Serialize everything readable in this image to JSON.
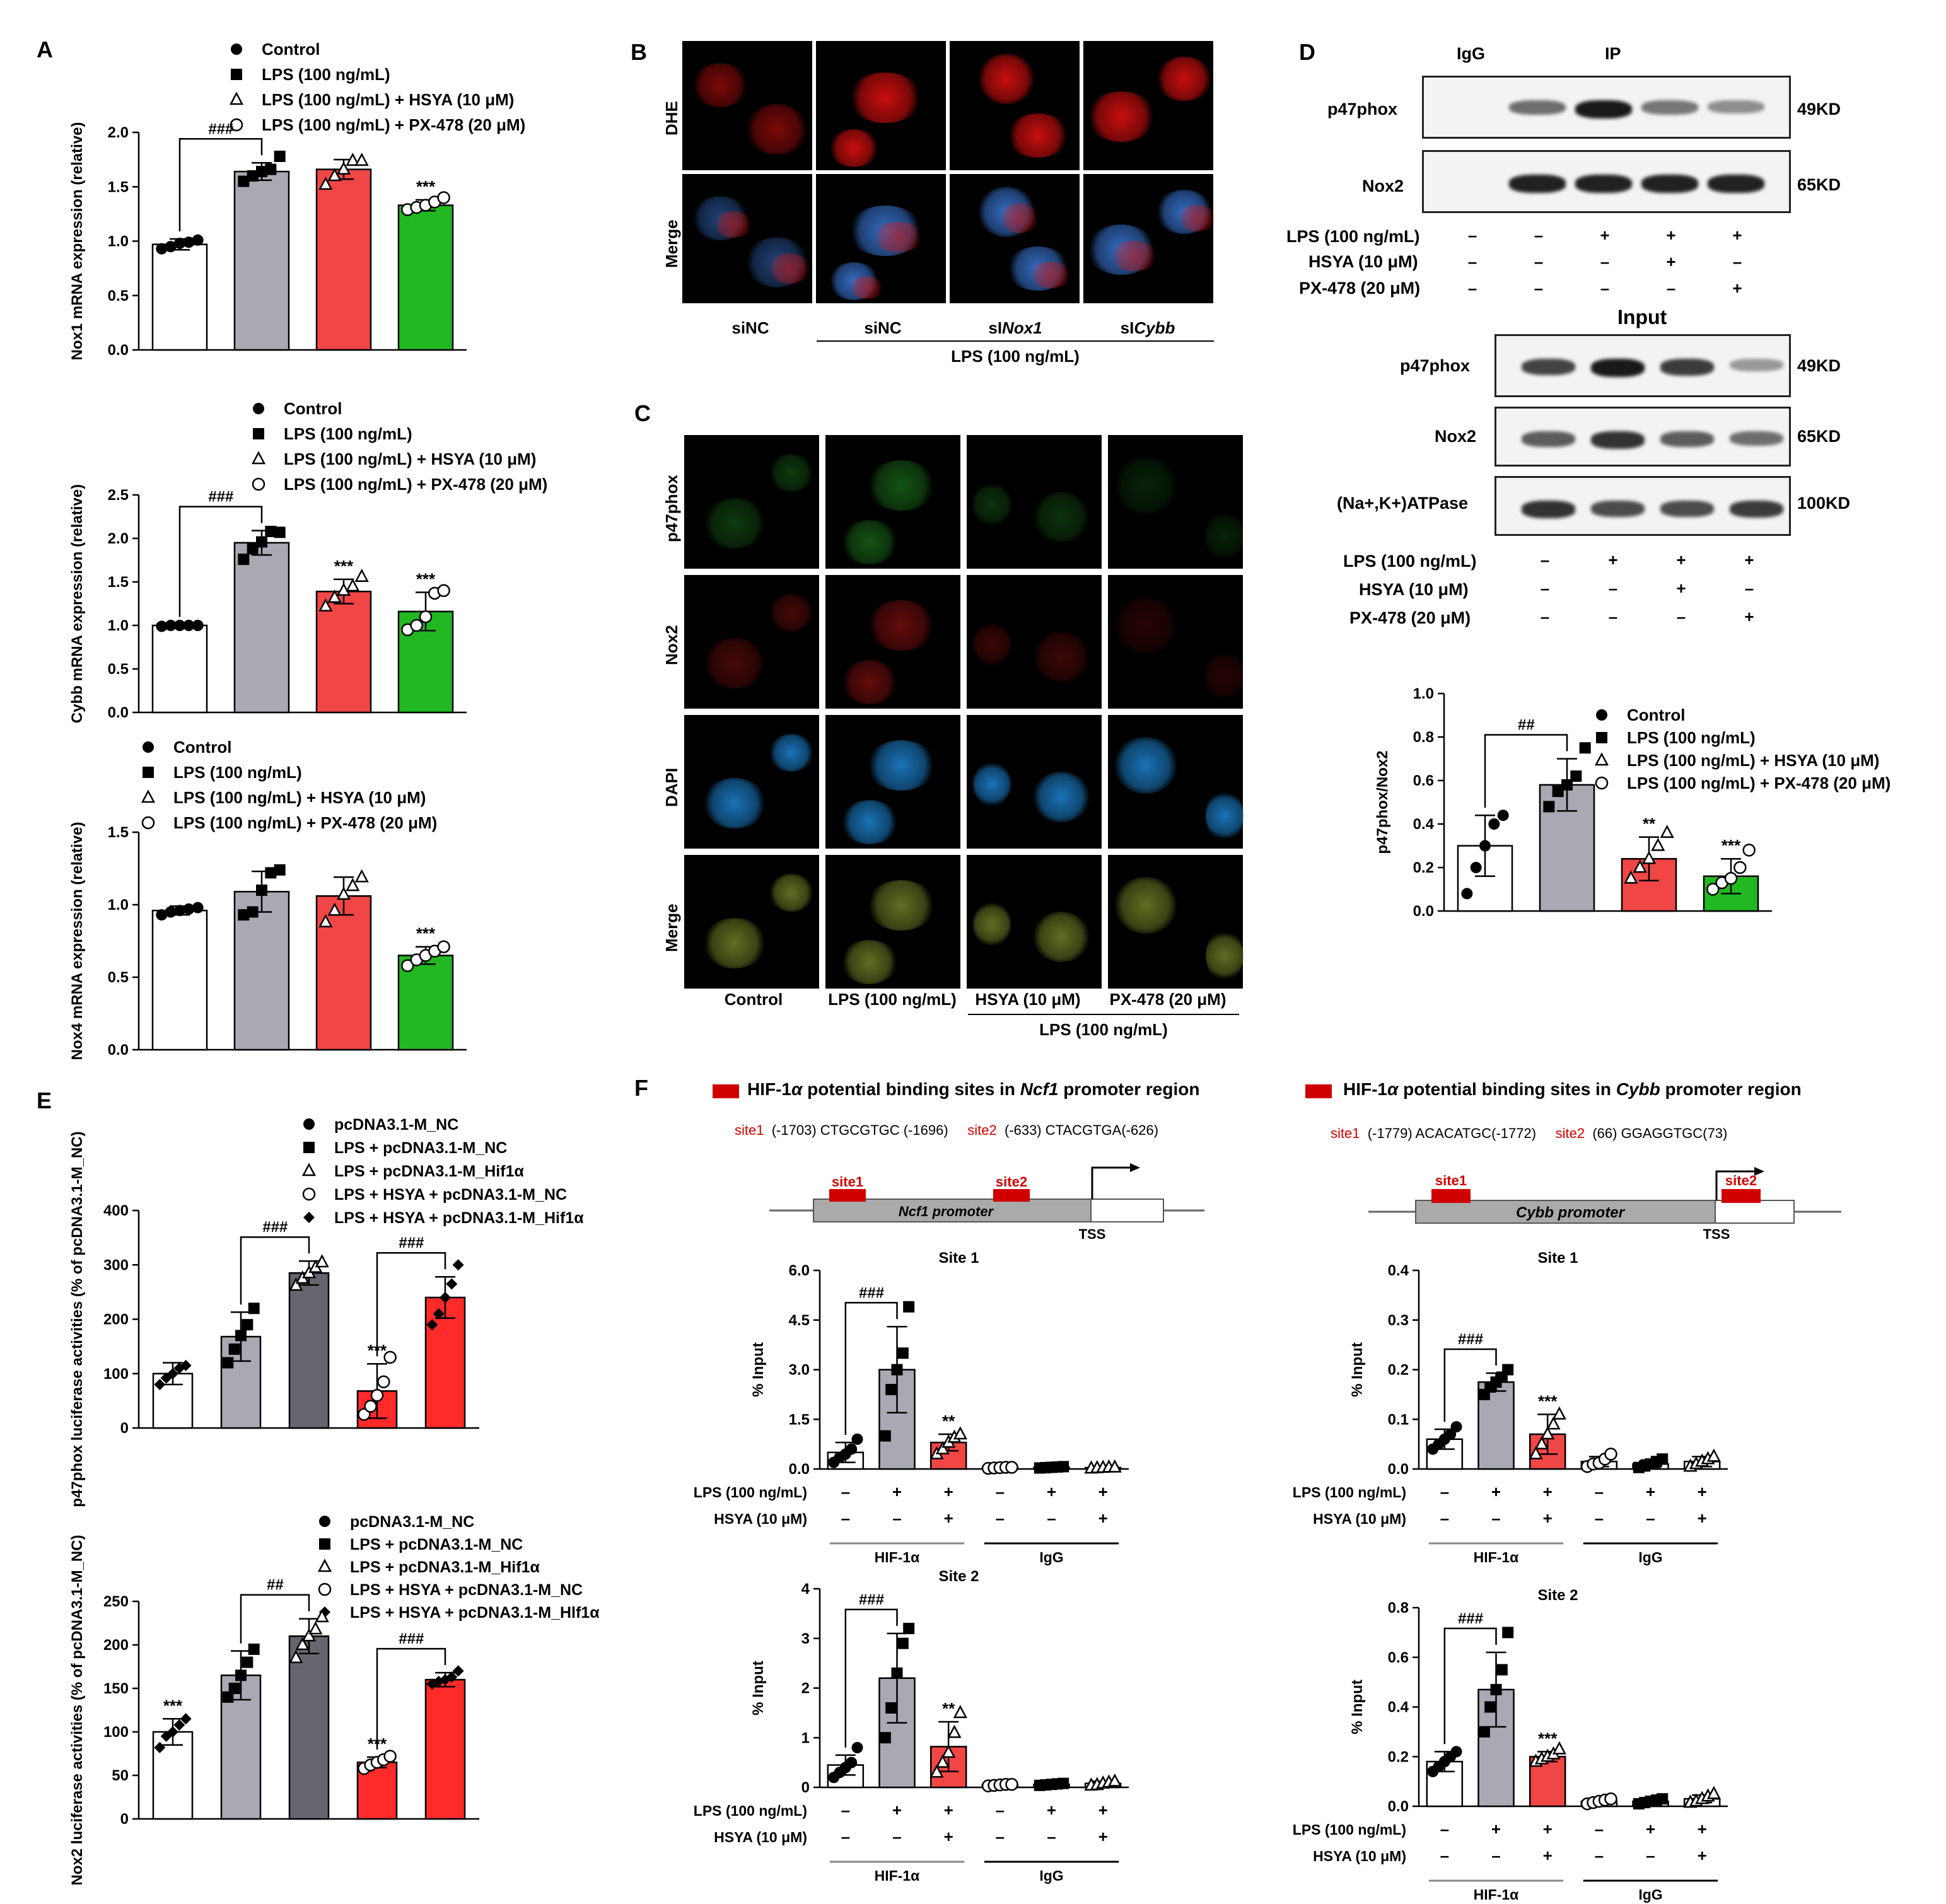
{
  "panels": {
    "A": "A",
    "B": "B",
    "C": "C",
    "D": "D",
    "E": "E",
    "F": "F"
  },
  "colors": {
    "control": "#ffffff",
    "lps": "#a9a9b3",
    "hsya": "#f04646",
    "px": "#22b822",
    "hif1a": "#666670",
    "red": "#ff2a2a",
    "nc2": "#ff2a2a",
    "blue_ring": "#3c5cc8"
  },
  "legends": {
    "treat": [
      "Control",
      "LPS (100 ng/mL)",
      "LPS (100 ng/mL) + HSYA (10 μM)",
      "LPS (100 ng/mL) + PX-478 (20 μM)"
    ],
    "luc_top": [
      "pcDNA3.1-M_NC",
      "LPS + pcDNA3.1-M_NC",
      "LPS + pcDNA3.1-M_Hif1α",
      "LPS + HSYA + pcDNA3.1-M_NC",
      "LPS + HSYA + pcDNA3.1-M_Hif1α"
    ],
    "luc_bottom": [
      "pcDNA3.1-M_NC",
      "LPS  + pcDNA3.1-M_NC",
      "LPS  + pcDNA3.1-M_Hif1α",
      "LPS + HSYA + pcDNA3.1-M_NC",
      "LPS + HSYA + pcDNA3.1-M_Hlf1α"
    ]
  },
  "panel_b": {
    "row_labels": [
      "DHE",
      "Merge"
    ],
    "col_labels": [
      "siNC",
      "siNC",
      "siNox1",
      "siCybb"
    ],
    "group_label": "LPS (100 ng/mL)"
  },
  "panel_c": {
    "row_labels": [
      "p47phox",
      "Nox2",
      "DAPI",
      "Merge"
    ],
    "col_labels": [
      "Control",
      "LPS (100 ng/mL)",
      "HSYA (10 μM)",
      "PX-478 (20 μM)"
    ],
    "group_label": "LPS (100 ng/mL)"
  },
  "panel_d": {
    "ip_headers": [
      "IgG",
      "IP"
    ],
    "ip_rows": [
      "p47phox",
      "Nox2"
    ],
    "ip_kd": [
      "49KD",
      "65KD"
    ],
    "treat_rows": [
      "LPS (100 ng/mL)",
      "HSYA (10 μM)",
      "PX-478 (20 μM)"
    ],
    "ip_signs": [
      [
        "–",
        "–",
        "+",
        "+",
        "+"
      ],
      [
        "–",
        "–",
        "–",
        "+",
        "–"
      ],
      [
        "–",
        "–",
        "–",
        "–",
        "+"
      ]
    ],
    "input_title": "Input",
    "input_rows": [
      "p47phox",
      "Nox2",
      "(Na+,K+)ATPase"
    ],
    "input_kd": [
      "49KD",
      "65KD",
      "100KD"
    ],
    "input_signs": [
      [
        "–",
        "+",
        "+",
        "+"
      ],
      [
        "–",
        "–",
        "+",
        "–"
      ],
      [
        "–",
        "–",
        "–",
        "+"
      ]
    ]
  },
  "panel_f": {
    "left_title_pre": "HIF-1",
    "left_title_mid": " potential binding sites in ",
    "left_gene": "Ncf1",
    "left_title_post": " promoter region",
    "right_gene": "Cybb",
    "alpha": "α",
    "left_site1": "site1",
    "left_site1_seq": "(-1703) CTGCGTGC (-1696)",
    "left_site2": "site2",
    "left_site2_seq": "(-633) CTACGTGA(-626)",
    "right_site1": "site1",
    "right_site1_seq": "(-1779) ACACATGC(-1772)",
    "right_site2": "site2",
    "right_site2_seq": "(66) GGAGGTGC(73)",
    "left_promoter": "Ncf1 promoter",
    "right_promoter": "Cybb promoter",
    "tss": "TSS"
  },
  "chart_data": [
    {
      "id": "A1",
      "type": "bar",
      "ylabel": "Nox1 mRNA expression (relative)",
      "ylim": [
        0,
        2.0
      ],
      "yticks": [
        0.0,
        0.5,
        1.0,
        1.5,
        2.0
      ],
      "categories": [
        "Control",
        "LPS",
        "LPS+HSYA",
        "LPS+PX-478"
      ],
      "values": [
        0.97,
        1.64,
        1.66,
        1.33
      ],
      "errors": [
        0.05,
        0.08,
        0.09,
        0.05
      ],
      "points": [
        [
          0.93,
          0.95,
          0.98,
          0.99,
          1.01
        ],
        [
          1.55,
          1.6,
          1.64,
          1.66,
          1.78
        ],
        [
          1.52,
          1.6,
          1.66,
          1.74,
          1.74
        ],
        [
          1.29,
          1.31,
          1.33,
          1.36,
          1.4
        ]
      ],
      "annotations": [
        "###",
        "",
        "",
        "***"
      ]
    },
    {
      "id": "A2",
      "type": "bar",
      "ylabel": "Cybb mRNA expression (relative)",
      "ylim": [
        0,
        2.5
      ],
      "yticks": [
        0.0,
        0.5,
        1.0,
        1.5,
        2.0,
        2.5
      ],
      "categories": [
        "Control",
        "LPS",
        "LPS+HSYA",
        "LPS+PX-478"
      ],
      "values": [
        1.0,
        1.95,
        1.39,
        1.16
      ],
      "errors": [
        0.01,
        0.14,
        0.14,
        0.22
      ],
      "points": [
        [
          0.99,
          1.0,
          1.0,
          1.0,
          1.0
        ],
        [
          1.76,
          1.88,
          1.96,
          2.08,
          2.07
        ],
        [
          1.22,
          1.32,
          1.4,
          1.45,
          1.56
        ],
        [
          0.95,
          1.0,
          1.1,
          1.37,
          1.4
        ]
      ],
      "annotations": [
        "###",
        "",
        "***",
        "***"
      ]
    },
    {
      "id": "A3",
      "type": "bar",
      "ylabel": "Nox4 mRNA expression (relative)",
      "ylim": [
        0,
        1.5
      ],
      "yticks": [
        0.0,
        0.5,
        1.0,
        1.5
      ],
      "categories": [
        "Control",
        "LPS",
        "LPS+HSYA",
        "LPS+PX-478"
      ],
      "values": [
        0.96,
        1.09,
        1.06,
        0.65
      ],
      "errors": [
        0.03,
        0.14,
        0.13,
        0.06
      ],
      "points": [
        [
          0.93,
          0.95,
          0.96,
          0.97,
          0.98
        ],
        [
          0.93,
          0.95,
          1.1,
          1.22,
          1.24
        ],
        [
          0.88,
          0.96,
          1.07,
          1.13,
          1.19
        ],
        [
          0.58,
          0.62,
          0.65,
          0.68,
          0.71
        ]
      ],
      "annotations": [
        "",
        "",
        "",
        "***"
      ]
    },
    {
      "id": "D",
      "type": "bar",
      "ylabel": "p47phox/Nox2",
      "ylim": [
        0,
        1.0
      ],
      "yticks": [
        0.0,
        0.2,
        0.4,
        0.6,
        0.8,
        1.0
      ],
      "categories": [
        "Control",
        "LPS",
        "LPS+HSYA",
        "LPS+PX-478"
      ],
      "values": [
        0.3,
        0.58,
        0.24,
        0.16
      ],
      "errors": [
        0.14,
        0.12,
        0.1,
        0.08
      ],
      "points": [
        [
          0.08,
          0.2,
          0.3,
          0.4,
          0.44
        ],
        [
          0.48,
          0.55,
          0.58,
          0.62,
          0.75
        ],
        [
          0.15,
          0.2,
          0.24,
          0.3,
          0.36
        ],
        [
          0.1,
          0.13,
          0.15,
          0.2,
          0.28
        ]
      ],
      "annotations": [
        "##",
        "",
        "**",
        "***"
      ]
    },
    {
      "id": "E1",
      "type": "bar",
      "ylabel": "p47phox luciferase activities (% of pcDNA3.1-M_NC)",
      "ylim": [
        0,
        400
      ],
      "yticks": [
        0,
        100,
        200,
        300,
        400
      ],
      "categories": [
        "pcDNA3.1-M_NC",
        "LPS+NC",
        "LPS+Hif1α",
        "LPS+HSYA+NC",
        "LPS+HSYA+Hif1α"
      ],
      "values": [
        100,
        168,
        285,
        68,
        240
      ],
      "errors": [
        20,
        45,
        22,
        50,
        38
      ],
      "points": [
        [
          80,
          92,
          100,
          110,
          115
        ],
        [
          120,
          145,
          170,
          190,
          220
        ],
        [
          262,
          275,
          285,
          295,
          305
        ],
        [
          25,
          40,
          60,
          85,
          130
        ],
        [
          190,
          210,
          240,
          265,
          300
        ]
      ],
      "annotations": [
        "",
        "",
        "###",
        "***",
        "###"
      ]
    },
    {
      "id": "E2",
      "type": "bar",
      "ylabel": "Nox2 luciferase activities (% of pcDNA3.1-M_NC)",
      "ylim": [
        0,
        250
      ],
      "yticks": [
        0,
        50,
        100,
        150,
        200,
        250
      ],
      "categories": [
        "pcDNA3.1-M_NC",
        "LPS+NC",
        "LPS+Hif1α",
        "LPS+HSYA+NC",
        "LPS+HSYA+Hif1α"
      ],
      "values": [
        100,
        165,
        210,
        65,
        160
      ],
      "errors": [
        15,
        28,
        20,
        6,
        8
      ],
      "points": [
        [
          82,
          95,
          100,
          108,
          115
        ],
        [
          140,
          150,
          165,
          180,
          195
        ],
        [
          185,
          200,
          210,
          218,
          232
        ],
        [
          58,
          62,
          65,
          68,
          72
        ],
        [
          155,
          158,
          160,
          163,
          170
        ]
      ],
      "annotations": [
        "***",
        "",
        "##",
        "***",
        "###"
      ]
    },
    {
      "id": "F1",
      "type": "bar",
      "title": "Site 1",
      "ylabel": "% Input",
      "ylim": [
        0,
        6.0
      ],
      "yticks": [
        0.0,
        1.5,
        3.0,
        4.5,
        6.0
      ],
      "categories": [
        "HIF-1α −/−",
        "HIF-1α +/−",
        "HIF-1α +/+",
        "IgG −/−",
        "IgG +/−",
        "IgG +/+"
      ],
      "values": [
        0.5,
        3.0,
        0.8,
        0.04,
        0.05,
        0.04
      ],
      "errors": [
        0.3,
        1.3,
        0.25,
        0.02,
        0.02,
        0.02
      ],
      "points": [
        [
          0.2,
          0.35,
          0.45,
          0.6,
          0.9
        ],
        [
          1.0,
          2.4,
          3.0,
          3.5,
          4.9
        ],
        [
          0.45,
          0.6,
          0.8,
          0.95,
          1.05
        ],
        [
          0.02,
          0.03,
          0.04,
          0.05,
          0.05
        ],
        [
          0.03,
          0.04,
          0.05,
          0.06,
          0.07
        ],
        [
          0.02,
          0.03,
          0.04,
          0.05,
          0.05
        ]
      ],
      "annotations": [
        "###",
        "",
        "**",
        "",
        "",
        ""
      ],
      "group_labels": [
        "HIF-1α",
        "IgG"
      ],
      "row_labels": [
        "LPS (100 ng/mL)",
        "HSYA (10 μM)"
      ],
      "signs": [
        [
          "–",
          "+",
          "+",
          "–",
          "+",
          "+"
        ],
        [
          "–",
          "–",
          "+",
          "–",
          "–",
          "+"
        ]
      ]
    },
    {
      "id": "F2",
      "type": "bar",
      "title": "Site 2",
      "ylabel": "% Input",
      "ylim": [
        0,
        4
      ],
      "yticks": [
        0,
        1,
        2,
        3,
        4
      ],
      "categories": [
        "HIF-1α −/−",
        "HIF-1α +/−",
        "HIF-1α +/+",
        "IgG −/−",
        "IgG +/−",
        "IgG +/+"
      ],
      "values": [
        0.45,
        2.2,
        0.82,
        0.05,
        0.06,
        0.08
      ],
      "errors": [
        0.2,
        0.9,
        0.5,
        0.02,
        0.02,
        0.04
      ],
      "points": [
        [
          0.2,
          0.3,
          0.4,
          0.5,
          0.8
        ],
        [
          1.0,
          1.6,
          2.3,
          2.9,
          3.2
        ],
        [
          0.3,
          0.5,
          0.7,
          1.1,
          1.5
        ],
        [
          0.03,
          0.04,
          0.05,
          0.06,
          0.06
        ],
        [
          0.04,
          0.05,
          0.06,
          0.07,
          0.08
        ],
        [
          0.04,
          0.05,
          0.08,
          0.1,
          0.12
        ]
      ],
      "annotations": [
        "###",
        "",
        "**",
        "",
        "",
        ""
      ],
      "group_labels": [
        "HIF-1α",
        "IgG"
      ],
      "row_labels": [
        "LPS (100 ng/mL)",
        "HSYA (10 μM)"
      ],
      "signs": [
        [
          "–",
          "+",
          "+",
          "–",
          "+",
          "+"
        ],
        [
          "–",
          "–",
          "+",
          "–",
          "–",
          "+"
        ]
      ]
    },
    {
      "id": "F3",
      "type": "bar",
      "title": "Site 1",
      "ylabel": "% Input",
      "ylim": [
        0,
        0.4
      ],
      "yticks": [
        0.0,
        0.1,
        0.2,
        0.3,
        0.4
      ],
      "categories": [
        "HIF-1α −/−",
        "HIF-1α +/−",
        "HIF-1α +/+",
        "IgG −/−",
        "IgG +/−",
        "IgG +/+"
      ],
      "values": [
        0.06,
        0.175,
        0.07,
        0.015,
        0.01,
        0.015
      ],
      "errors": [
        0.02,
        0.018,
        0.04,
        0.01,
        0.008,
        0.01
      ],
      "points": [
        [
          0.04,
          0.05,
          0.06,
          0.07,
          0.085
        ],
        [
          0.15,
          0.165,
          0.175,
          0.185,
          0.2
        ],
        [
          0.03,
          0.05,
          0.07,
          0.09,
          0.11
        ],
        [
          0.005,
          0.01,
          0.012,
          0.02,
          0.03
        ],
        [
          0.003,
          0.006,
          0.01,
          0.015,
          0.02
        ],
        [
          0.005,
          0.01,
          0.015,
          0.02,
          0.025
        ]
      ],
      "annotations": [
        "###",
        "",
        "***",
        "",
        "",
        ""
      ],
      "group_labels": [
        "HIF-1α",
        "IgG"
      ],
      "row_labels": [
        "LPS (100 ng/mL)",
        "HSYA (10 μM)"
      ],
      "signs": [
        [
          "–",
          "+",
          "+",
          "–",
          "+",
          "+"
        ],
        [
          "–",
          "–",
          "+",
          "–",
          "–",
          "+"
        ]
      ]
    },
    {
      "id": "F4",
      "type": "bar",
      "title": "Site 2",
      "ylabel": "% Input",
      "ylim": [
        0,
        0.8
      ],
      "yticks": [
        0.0,
        0.2,
        0.4,
        0.6,
        0.8
      ],
      "categories": [
        "HIF-1α −/−",
        "HIF-1α +/−",
        "HIF-1α +/+",
        "IgG −/−",
        "IgG +/−",
        "IgG +/+"
      ],
      "values": [
        0.18,
        0.47,
        0.2,
        0.02,
        0.02,
        0.03
      ],
      "errors": [
        0.04,
        0.15,
        0.02,
        0.01,
        0.01,
        0.015
      ],
      "points": [
        [
          0.14,
          0.16,
          0.18,
          0.2,
          0.22
        ],
        [
          0.3,
          0.4,
          0.47,
          0.55,
          0.7
        ],
        [
          0.18,
          0.19,
          0.2,
          0.21,
          0.23
        ],
        [
          0.01,
          0.015,
          0.02,
          0.025,
          0.03
        ],
        [
          0.01,
          0.015,
          0.02,
          0.025,
          0.03
        ],
        [
          0.015,
          0.02,
          0.03,
          0.04,
          0.05
        ]
      ],
      "annotations": [
        "###",
        "",
        "***",
        "",
        "",
        ""
      ],
      "group_labels": [
        "HIF-1α",
        "IgG"
      ],
      "row_labels": [
        "LPS (100 ng/mL)",
        "HSYA (10 μM)"
      ],
      "signs": [
        [
          "–",
          "+",
          "+",
          "–",
          "+",
          "+"
        ],
        [
          "–",
          "–",
          "+",
          "–",
          "–",
          "+"
        ]
      ]
    }
  ]
}
